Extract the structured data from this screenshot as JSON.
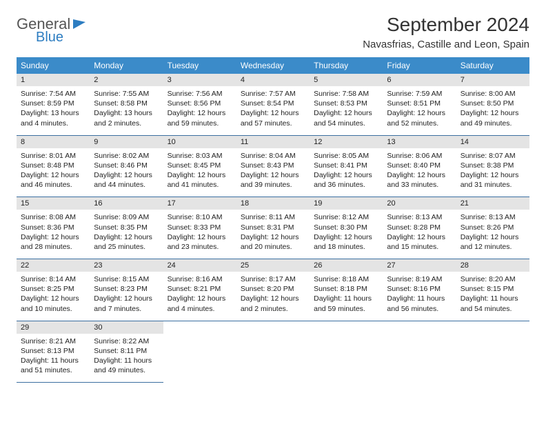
{
  "logo": {
    "line1": "General",
    "line2": "Blue"
  },
  "title": "September 2024",
  "subtitle": "Navasfrias, Castille and Leon, Spain",
  "colors": {
    "header_bg": "#3b8bc9",
    "header_text": "#ffffff",
    "daynum_bg": "#e4e4e4",
    "row_border": "#3b6fa0",
    "logo_accent": "#2d7dc1"
  },
  "day_headers": [
    "Sunday",
    "Monday",
    "Tuesday",
    "Wednesday",
    "Thursday",
    "Friday",
    "Saturday"
  ],
  "weeks": [
    [
      {
        "num": "1",
        "sunrise": "Sunrise: 7:54 AM",
        "sunset": "Sunset: 8:59 PM",
        "daylight": "Daylight: 13 hours and 4 minutes."
      },
      {
        "num": "2",
        "sunrise": "Sunrise: 7:55 AM",
        "sunset": "Sunset: 8:58 PM",
        "daylight": "Daylight: 13 hours and 2 minutes."
      },
      {
        "num": "3",
        "sunrise": "Sunrise: 7:56 AM",
        "sunset": "Sunset: 8:56 PM",
        "daylight": "Daylight: 12 hours and 59 minutes."
      },
      {
        "num": "4",
        "sunrise": "Sunrise: 7:57 AM",
        "sunset": "Sunset: 8:54 PM",
        "daylight": "Daylight: 12 hours and 57 minutes."
      },
      {
        "num": "5",
        "sunrise": "Sunrise: 7:58 AM",
        "sunset": "Sunset: 8:53 PM",
        "daylight": "Daylight: 12 hours and 54 minutes."
      },
      {
        "num": "6",
        "sunrise": "Sunrise: 7:59 AM",
        "sunset": "Sunset: 8:51 PM",
        "daylight": "Daylight: 12 hours and 52 minutes."
      },
      {
        "num": "7",
        "sunrise": "Sunrise: 8:00 AM",
        "sunset": "Sunset: 8:50 PM",
        "daylight": "Daylight: 12 hours and 49 minutes."
      }
    ],
    [
      {
        "num": "8",
        "sunrise": "Sunrise: 8:01 AM",
        "sunset": "Sunset: 8:48 PM",
        "daylight": "Daylight: 12 hours and 46 minutes."
      },
      {
        "num": "9",
        "sunrise": "Sunrise: 8:02 AM",
        "sunset": "Sunset: 8:46 PM",
        "daylight": "Daylight: 12 hours and 44 minutes."
      },
      {
        "num": "10",
        "sunrise": "Sunrise: 8:03 AM",
        "sunset": "Sunset: 8:45 PM",
        "daylight": "Daylight: 12 hours and 41 minutes."
      },
      {
        "num": "11",
        "sunrise": "Sunrise: 8:04 AM",
        "sunset": "Sunset: 8:43 PM",
        "daylight": "Daylight: 12 hours and 39 minutes."
      },
      {
        "num": "12",
        "sunrise": "Sunrise: 8:05 AM",
        "sunset": "Sunset: 8:41 PM",
        "daylight": "Daylight: 12 hours and 36 minutes."
      },
      {
        "num": "13",
        "sunrise": "Sunrise: 8:06 AM",
        "sunset": "Sunset: 8:40 PM",
        "daylight": "Daylight: 12 hours and 33 minutes."
      },
      {
        "num": "14",
        "sunrise": "Sunrise: 8:07 AM",
        "sunset": "Sunset: 8:38 PM",
        "daylight": "Daylight: 12 hours and 31 minutes."
      }
    ],
    [
      {
        "num": "15",
        "sunrise": "Sunrise: 8:08 AM",
        "sunset": "Sunset: 8:36 PM",
        "daylight": "Daylight: 12 hours and 28 minutes."
      },
      {
        "num": "16",
        "sunrise": "Sunrise: 8:09 AM",
        "sunset": "Sunset: 8:35 PM",
        "daylight": "Daylight: 12 hours and 25 minutes."
      },
      {
        "num": "17",
        "sunrise": "Sunrise: 8:10 AM",
        "sunset": "Sunset: 8:33 PM",
        "daylight": "Daylight: 12 hours and 23 minutes."
      },
      {
        "num": "18",
        "sunrise": "Sunrise: 8:11 AM",
        "sunset": "Sunset: 8:31 PM",
        "daylight": "Daylight: 12 hours and 20 minutes."
      },
      {
        "num": "19",
        "sunrise": "Sunrise: 8:12 AM",
        "sunset": "Sunset: 8:30 PM",
        "daylight": "Daylight: 12 hours and 18 minutes."
      },
      {
        "num": "20",
        "sunrise": "Sunrise: 8:13 AM",
        "sunset": "Sunset: 8:28 PM",
        "daylight": "Daylight: 12 hours and 15 minutes."
      },
      {
        "num": "21",
        "sunrise": "Sunrise: 8:13 AM",
        "sunset": "Sunset: 8:26 PM",
        "daylight": "Daylight: 12 hours and 12 minutes."
      }
    ],
    [
      {
        "num": "22",
        "sunrise": "Sunrise: 8:14 AM",
        "sunset": "Sunset: 8:25 PM",
        "daylight": "Daylight: 12 hours and 10 minutes."
      },
      {
        "num": "23",
        "sunrise": "Sunrise: 8:15 AM",
        "sunset": "Sunset: 8:23 PM",
        "daylight": "Daylight: 12 hours and 7 minutes."
      },
      {
        "num": "24",
        "sunrise": "Sunrise: 8:16 AM",
        "sunset": "Sunset: 8:21 PM",
        "daylight": "Daylight: 12 hours and 4 minutes."
      },
      {
        "num": "25",
        "sunrise": "Sunrise: 8:17 AM",
        "sunset": "Sunset: 8:20 PM",
        "daylight": "Daylight: 12 hours and 2 minutes."
      },
      {
        "num": "26",
        "sunrise": "Sunrise: 8:18 AM",
        "sunset": "Sunset: 8:18 PM",
        "daylight": "Daylight: 11 hours and 59 minutes."
      },
      {
        "num": "27",
        "sunrise": "Sunrise: 8:19 AM",
        "sunset": "Sunset: 8:16 PM",
        "daylight": "Daylight: 11 hours and 56 minutes."
      },
      {
        "num": "28",
        "sunrise": "Sunrise: 8:20 AM",
        "sunset": "Sunset: 8:15 PM",
        "daylight": "Daylight: 11 hours and 54 minutes."
      }
    ],
    [
      {
        "num": "29",
        "sunrise": "Sunrise: 8:21 AM",
        "sunset": "Sunset: 8:13 PM",
        "daylight": "Daylight: 11 hours and 51 minutes."
      },
      {
        "num": "30",
        "sunrise": "Sunrise: 8:22 AM",
        "sunset": "Sunset: 8:11 PM",
        "daylight": "Daylight: 11 hours and 49 minutes."
      },
      null,
      null,
      null,
      null,
      null
    ]
  ]
}
